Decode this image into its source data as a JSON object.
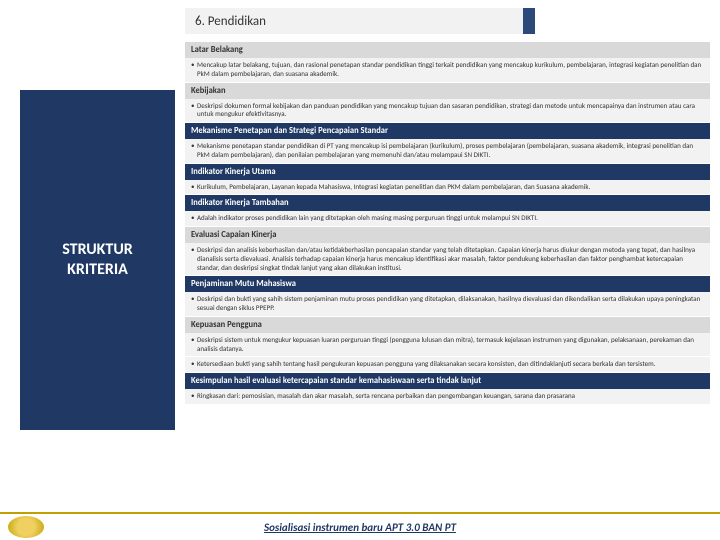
{
  "title": "6. Pendidikan",
  "sidebar": {
    "line1": "STRUKTUR",
    "line2": "KRITERIA"
  },
  "sections": [
    {
      "h": "Latar Belakang",
      "type": "light",
      "b": "Mencakup latar belakang, tujuan, dan rasional penetapan standar pendidikan tinggi terkait pendidikan yang mencakup kurikulum, pembelajaran, integrasi kegiatan penelitian dan PkM dalam pembelajaran, dan suasana akademik."
    },
    {
      "h": "Kebijakan",
      "type": "light",
      "b": "Deskripsi dokumen formal kebijakan dan panduan pendidikan yang mencakup tujuan dan sasaran pendidikan, strategi dan metode untuk mencapainya dan instrumen atau cara untuk mengukur efektivitasnya."
    },
    {
      "h": "Mekanisme Penetapan dan Strategi Pencapaian Standar",
      "type": "dark",
      "b": "Mekanisme penetapan standar pendidikan di PT yang mencakup isi pembelajaran (kurikulum), proses pembelajaran (pembelajaran, suasana akademik, integrasi penelitian dan PkM dalam pembelajaran), dan penilaian pembelajaran yang memenuhi dan/atau melampaui SN DIKTI."
    },
    {
      "h": "Indikator Kinerja Utama",
      "type": "dark",
      "b": "Kurikulum, Pembelajaran, Layanan kepada Mahasiswa, Integrasi kegiatan penelitian dan PKM dalam pembelajaran, dan Suasana akademik."
    },
    {
      "h": "Indikator Kinerja Tambahan",
      "type": "dark",
      "b": "Adalah indikator proses pendidikan lain yang ditetapkan oleh masing masing perguruan tinggi untuk melampui SN DIKTI."
    },
    {
      "h": "Evaluasi Capaian Kinerja",
      "type": "light",
      "b": "Deskripsi dan analisis keberhasilan dan/atau ketidakberhasilan pencapaian standar yang telah ditetapkan. Capaian kinerja harus diukur dengan metoda yang tepat, dan hasilnya dianalisis serta dievaluasi. Analisis terhadap capaian kinerja harus mencakup identifikasi akar masalah, faktor pendukung keberhasilan dan faktor penghambat ketercapaian standar, dan deskripsi singkat tindak lanjut yang akan dilakukan institusi."
    },
    {
      "h": "Penjaminan Mutu Mahasiswa",
      "type": "dark",
      "b": "Deskripsi dan bukti yang sahih sistem penjaminan mutu proses pendidikan yang ditetapkan, dilaksanakan, hasilnya dievaluasi dan dikendalikan serta dilakukan upaya peningkatan sesuai dengan siklus PPEPP."
    },
    {
      "h": "Kepuasan Pengguna",
      "type": "light",
      "b": "Deskripsi sistem untuk mengukur kepuasan luaran perguruan tinggi (pengguna lulusan dan mitra), termasuk kejelasan instrumen yang digunakan, pelaksanaan, perekaman dan analisis datanya."
    },
    {
      "h": "",
      "type": "none",
      "b": "Ketersediaan bukti yang sahih tentang hasil pengukuran kepuasan pengguna yang dilaksanakan secara konsisten, dan ditindaklanjuti secara berkala dan tersistem."
    },
    {
      "h": "Kesimpulan hasil evaluasi ketercapaian standar kemahasiswaan serta tindak lanjut",
      "type": "dark",
      "b": "Ringkasan dari: pemosisian, masalah dan akar masalah, serta rencana perbaikan dan pengembangan keuangan, sarana dan prasarana"
    }
  ],
  "footer": "Sosialisasi instrumen baru APT 3.0 BAN PT",
  "colors": {
    "dark_header_bg": "#1f3864",
    "light_header_bg": "#d9d9d9",
    "body_bg": "#f2f2f2",
    "footer_underline": "#c0a000"
  }
}
